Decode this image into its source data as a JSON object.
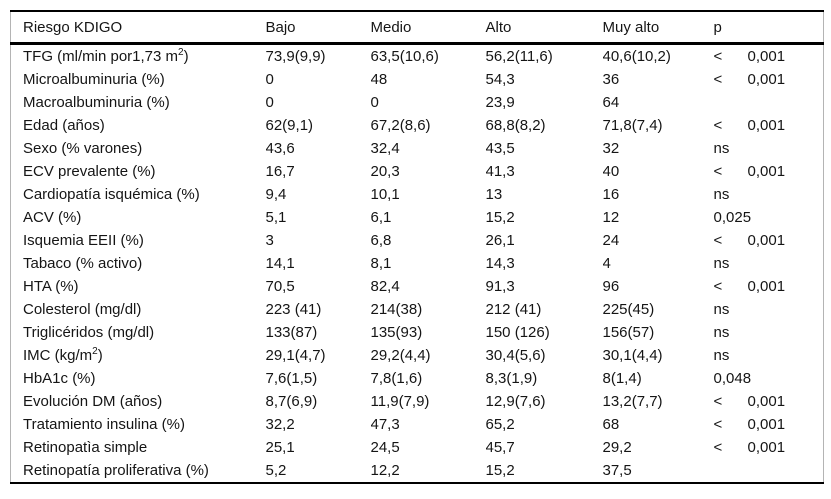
{
  "table": {
    "columns": [
      "Riesgo KDIGO",
      "Bajo",
      "Medio",
      "Alto",
      "Muy alto",
      "p"
    ],
    "rows": [
      {
        "label_pre": "TFG (ml/min por1,73 m",
        "label_sup": "2",
        "label_post": ")",
        "bajo": "73,9(9,9)",
        "medio": "63,5(10,6)",
        "alto": "56,2(11,6)",
        "muy_alto": "40,6(10,2)",
        "p_left": "<",
        "p_right": "0,001"
      },
      {
        "label_pre": "Microalbuminuria (%)",
        "label_sup": "",
        "label_post": "",
        "bajo": "0",
        "medio": "48",
        "alto": "54,3",
        "muy_alto": "36",
        "p_left": "<",
        "p_right": "0,001"
      },
      {
        "label_pre": "Macroalbuminuria (%)",
        "label_sup": "",
        "label_post": "",
        "bajo": "0",
        "medio": "0",
        "alto": "23,9",
        "muy_alto": "64",
        "p_left": "",
        "p_right": ""
      },
      {
        "label_pre": "Edad (años)",
        "label_sup": "",
        "label_post": "",
        "bajo": "62(9,1)",
        "medio": "67,2(8,6)",
        "alto": "68,8(8,2)",
        "muy_alto": "71,8(7,4)",
        "p_left": "<",
        "p_right": "0,001"
      },
      {
        "label_pre": "Sexo (% varones)",
        "label_sup": "",
        "label_post": "",
        "bajo": "43,6",
        "medio": "32,4",
        "alto": "43,5",
        "muy_alto": "32",
        "p_left": "ns",
        "p_right": ""
      },
      {
        "label_pre": "ECV prevalente (%)",
        "label_sup": "",
        "label_post": "",
        "bajo": "16,7",
        "medio": "20,3",
        "alto": "41,3",
        "muy_alto": "40",
        "p_left": "<",
        "p_right": "0,001"
      },
      {
        "label_pre": "Cardiopatía isquémica (%)",
        "label_sup": "",
        "label_post": "",
        "bajo": "9,4",
        "medio": "10,1",
        "alto": "13",
        "muy_alto": "16",
        "p_left": "ns",
        "p_right": ""
      },
      {
        "label_pre": "ACV (%)",
        "label_sup": "",
        "label_post": "",
        "bajo": "5,1",
        "medio": "6,1",
        "alto": "15,2",
        "muy_alto": "12",
        "p_left": "0,025",
        "p_right": ""
      },
      {
        "label_pre": "Isquemia EEII (%)",
        "label_sup": "",
        "label_post": "",
        "bajo": "3",
        "medio": "6,8",
        "alto": "26,1",
        "muy_alto": "24",
        "p_left": "<",
        "p_right": "0,001"
      },
      {
        "label_pre": "Tabaco (% activo)",
        "label_sup": "",
        "label_post": "",
        "bajo": "14,1",
        "medio": "8,1",
        "alto": "14,3",
        "muy_alto": "4",
        "p_left": "ns",
        "p_right": ""
      },
      {
        "label_pre": "HTA (%)",
        "label_sup": "",
        "label_post": "",
        "bajo": "70,5",
        "medio": "82,4",
        "alto": "91,3",
        "muy_alto": "96",
        "p_left": "<",
        "p_right": "0,001"
      },
      {
        "label_pre": "Colesterol (mg/dl)",
        "label_sup": "",
        "label_post": "",
        "bajo": "223 (41)",
        "medio": "214(38)",
        "alto": "212 (41)",
        "muy_alto": "225(45)",
        "p_left": "ns",
        "p_right": ""
      },
      {
        "label_pre": "Triglicéridos (mg/dl)",
        "label_sup": "",
        "label_post": "",
        "bajo": "133(87)",
        "medio": "135(93)",
        "alto": "150 (126)",
        "muy_alto": "156(57)",
        "p_left": "ns",
        "p_right": ""
      },
      {
        "label_pre": "IMC (kg/m",
        "label_sup": "2",
        "label_post": ")",
        "bajo": "29,1(4,7)",
        "medio": "29,2(4,4)",
        "alto": "30,4(5,6)",
        "muy_alto": "30,1(4,4)",
        "p_left": "ns",
        "p_right": ""
      },
      {
        "label_pre": "HbA1c (%)",
        "label_sup": "",
        "label_post": "",
        "bajo": "7,6(1,5)",
        "medio": "7,8(1,6)",
        "alto": "8,3(1,9)",
        "muy_alto": "8(1,4)",
        "p_left": "0,048",
        "p_right": ""
      },
      {
        "label_pre": "Evolución DM (años)",
        "label_sup": "",
        "label_post": "",
        "bajo": "8,7(6,9)",
        "medio": "11,9(7,9)",
        "alto": "12,9(7,6)",
        "muy_alto": "13,2(7,7)",
        "p_left": "<",
        "p_right": "0,001"
      },
      {
        "label_pre": "Tratamiento insulina (%)",
        "label_sup": "",
        "label_post": "",
        "bajo": "32,2",
        "medio": "47,3",
        "alto": "65,2",
        "muy_alto": "68",
        "p_left": "<",
        "p_right": "0,001"
      },
      {
        "label_pre": "Retinopatìa simple",
        "label_sup": "",
        "label_post": "",
        "bajo": "25,1",
        "medio": "24,5",
        "alto": "45,7",
        "muy_alto": "29,2",
        "p_left": "<",
        "p_right": "0,001"
      },
      {
        "label_pre": "Retinopatía proliferativa (%)",
        "label_sup": "",
        "label_post": "",
        "bajo": "5,2",
        "medio": "12,2",
        "alto": "15,2",
        "muy_alto": "37,5",
        "p_left": "",
        "p_right": ""
      }
    ]
  }
}
